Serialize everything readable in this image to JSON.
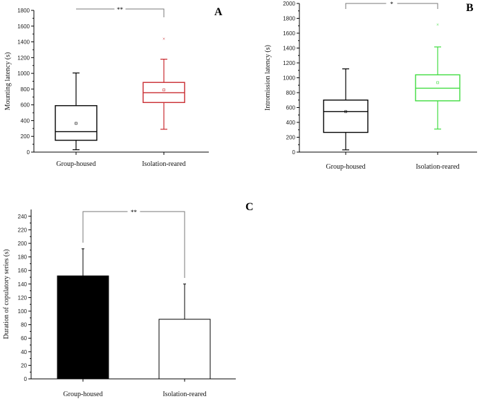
{
  "chart_data": [
    {
      "panel": "A",
      "type": "box",
      "ylabel": "Mounting latency (s)",
      "ylim": [
        0,
        1800
      ],
      "yticks": [
        0,
        200,
        400,
        600,
        800,
        1000,
        1200,
        1400,
        1600,
        1800
      ],
      "categories": [
        "Group-housed",
        "Isolation-reared"
      ],
      "colors": [
        "#000000",
        "#c8282d"
      ],
      "boxes": [
        {
          "min": 30,
          "q1": 150,
          "median": 260,
          "q3": 590,
          "max": 1005,
          "mean": 365,
          "outliers": []
        },
        {
          "min": 290,
          "q1": 630,
          "median": 755,
          "q3": 885,
          "max": 1180,
          "mean": 790,
          "outliers": [
            1445
          ]
        }
      ],
      "significance": "**"
    },
    {
      "panel": "B",
      "type": "box",
      "ylabel": "Intromission latency (s)",
      "ylim": [
        0,
        2000
      ],
      "yticks": [
        0,
        200,
        400,
        600,
        800,
        1000,
        1200,
        1400,
        1600,
        1800,
        2000
      ],
      "categories": [
        "Group-housed",
        "Isolation-reared"
      ],
      "colors": [
        "#000000",
        "#3fdc3f"
      ],
      "boxes": [
        {
          "min": 30,
          "q1": 265,
          "median": 545,
          "q3": 700,
          "max": 1120,
          "mean": 545,
          "outliers": []
        },
        {
          "min": 310,
          "q1": 690,
          "median": 860,
          "q3": 1040,
          "max": 1415,
          "mean": 935,
          "outliers": [
            1720
          ]
        }
      ],
      "significance": "*"
    },
    {
      "panel": "C",
      "type": "bar",
      "ylabel": "Duration of copulatory series (s)",
      "ylim": [
        0,
        250
      ],
      "yticks": [
        0,
        20,
        40,
        60,
        80,
        100,
        120,
        140,
        160,
        180,
        200,
        220,
        240
      ],
      "categories": [
        "Group-housed",
        "Isolation-reared"
      ],
      "values": [
        152,
        88
      ],
      "errors": [
        40,
        52
      ],
      "colors": [
        "#000000",
        "#ffffff"
      ],
      "significance": "**"
    }
  ]
}
